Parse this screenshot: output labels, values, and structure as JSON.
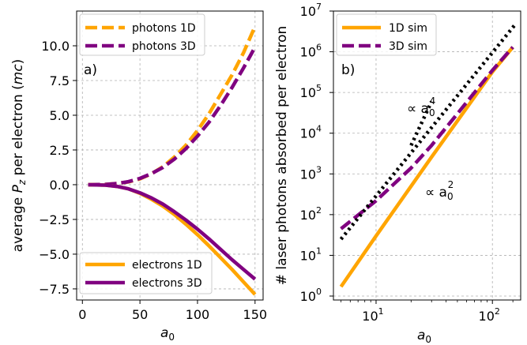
{
  "chart_data": [
    {
      "type": "line",
      "panel_label": "a)",
      "xlabel_main": "a",
      "xlabel_sub": "0",
      "ylabel_pre": "average ",
      "ylabel_sym": "P",
      "ylabel_sub": "z",
      "ylabel_post": " per electron (",
      "ylabel_unit": "mc",
      "ylabel_end": ")",
      "xlim": [
        -5,
        157
      ],
      "ylim": [
        -8.3,
        12.5
      ],
      "xticks": [
        0,
        50,
        100,
        150
      ],
      "xtick_labels": [
        "0",
        "50",
        "100",
        "150"
      ],
      "yticks": [
        -7.5,
        -5.0,
        -2.5,
        0.0,
        2.5,
        5.0,
        7.5,
        10.0
      ],
      "ytick_labels": [
        "−7.5",
        "−5.0",
        "−2.5",
        "0.0",
        "2.5",
        "5.0",
        "7.5",
        "10.0"
      ],
      "grid": true,
      "legends": [
        {
          "position": "upper-left",
          "entries": [
            "photons 1D",
            "photons 3D"
          ]
        },
        {
          "position": "lower-left",
          "entries": [
            "electrons 1D",
            "electrons 3D"
          ]
        }
      ],
      "series": [
        {
          "name": "photons 1D",
          "color": "#FFA500",
          "style": "dashed",
          "x": [
            5,
            20,
            30,
            40,
            50,
            60,
            70,
            80,
            90,
            100,
            110,
            120,
            130,
            140,
            150
          ],
          "values": [
            0.0,
            0.02,
            0.09,
            0.2,
            0.42,
            0.79,
            1.3,
            2.0,
            2.85,
            3.9,
            5.1,
            6.5,
            7.9,
            9.5,
            11.4
          ]
        },
        {
          "name": "photons 3D",
          "color": "#800080",
          "style": "dashed",
          "x": [
            5,
            20,
            30,
            40,
            50,
            60,
            70,
            80,
            90,
            100,
            110,
            120,
            130,
            140,
            150
          ],
          "values": [
            0.0,
            0.02,
            0.08,
            0.22,
            0.45,
            0.8,
            1.25,
            1.85,
            2.6,
            3.5,
            4.5,
            5.7,
            7.0,
            8.4,
            9.9
          ]
        },
        {
          "name": "electrons 1D",
          "color": "#FFA500",
          "style": "solid",
          "x": [
            5,
            20,
            30,
            40,
            50,
            60,
            70,
            80,
            90,
            100,
            110,
            120,
            130,
            140,
            150
          ],
          "values": [
            0.0,
            -0.03,
            -0.12,
            -0.3,
            -0.62,
            -1.05,
            -1.55,
            -2.15,
            -2.85,
            -3.6,
            -4.4,
            -5.25,
            -6.1,
            -7.0,
            -7.9
          ]
        },
        {
          "name": "electrons 3D",
          "color": "#800080",
          "style": "solid",
          "x": [
            5,
            20,
            30,
            40,
            50,
            60,
            70,
            80,
            90,
            100,
            110,
            120,
            130,
            140,
            150
          ],
          "values": [
            0.0,
            -0.03,
            -0.12,
            -0.3,
            -0.58,
            -0.95,
            -1.4,
            -1.95,
            -2.55,
            -3.2,
            -3.9,
            -4.65,
            -5.4,
            -6.1,
            -6.8
          ]
        }
      ]
    },
    {
      "type": "line",
      "panel_label": "b)",
      "xscale": "log",
      "yscale": "log",
      "xlabel_main": "a",
      "xlabel_sub": "0",
      "ylabel": "# laser photons absorbed per electron",
      "xlim": [
        4.3,
        175
      ],
      "ylim": [
        0.8,
        10000000
      ],
      "xticks": [
        10,
        100
      ],
      "xtick_bases": [
        "10",
        "10"
      ],
      "xtick_exps": [
        "1",
        "2"
      ],
      "yticks": [
        1,
        10,
        100,
        1000,
        10000,
        100000,
        1000000,
        10000000
      ],
      "ytick_bases": [
        "10",
        "10",
        "10",
        "10",
        "10",
        "10",
        "10",
        "10"
      ],
      "ytick_exps": [
        "0",
        "1",
        "2",
        "3",
        "4",
        "5",
        "6",
        "7"
      ],
      "grid": true,
      "legends": [
        {
          "position": "upper-left",
          "entries": [
            "1D sim",
            "3D sim"
          ]
        }
      ],
      "annotations": [
        {
          "prefix": "∝ a",
          "sub": "0",
          "sup": "4"
        },
        {
          "prefix": "∝ a",
          "sub": "0",
          "sup": "2"
        }
      ],
      "series": [
        {
          "name": "1D sim",
          "color": "#FFA500",
          "style": "solid",
          "x": [
            5,
            10,
            20,
            30,
            50,
            100,
            150
          ],
          "values": [
            1.7,
            30,
            500,
            2600,
            20000,
            320000,
            1300000
          ]
        },
        {
          "name": "3D sim",
          "color": "#800080",
          "style": "dashed",
          "x": [
            5,
            10,
            20,
            30,
            50,
            100,
            150
          ],
          "values": [
            45,
            220,
            1400,
            5000,
            30000,
            350000,
            1300000
          ]
        },
        {
          "name": "",
          "color": "#000000",
          "style": "dotted",
          "x": [
            5,
            160
          ],
          "values": [
            25,
            5000000
          ]
        },
        {
          "name": "",
          "color": "#000000",
          "style": "dotted",
          "x": [
            20,
            30
          ],
          "values": [
            5000,
            60000
          ]
        }
      ]
    }
  ]
}
